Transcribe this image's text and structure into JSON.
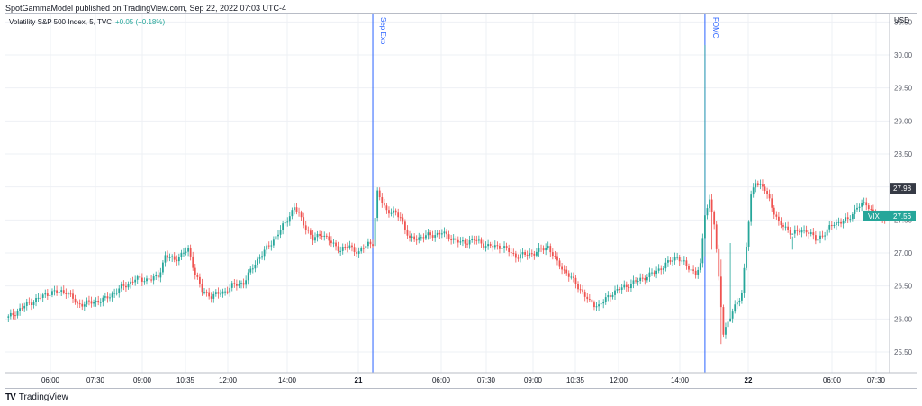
{
  "header": {
    "published": "SpotGammaModel published on TradingView.com, Sep 22, 2022 07:03 UTC-4"
  },
  "legend": {
    "symbol": "Volatility S&P 500 Index, 5, TVC",
    "change": "+0.05 (+0.18%)"
  },
  "footer": {
    "brand": "TradingView"
  },
  "colors": {
    "up": "#26a69a",
    "down": "#ef5350",
    "marker": "#2962ff",
    "text": "#131722",
    "grid": "#eef0f4"
  },
  "chart_data": {
    "type": "candlestick",
    "currency": "USD",
    "ylim": [
      25.2,
      30.6
    ],
    "y_ticks": [
      "25.50",
      "26.00",
      "26.50",
      "27.00",
      "27.50",
      "28.00",
      "28.50",
      "29.00",
      "29.50",
      "30.00",
      "30.50"
    ],
    "x_ticks": [
      "06:00",
      "07:30",
      "09:00",
      "10:35",
      "12:00",
      "14:00",
      "21",
      "06:00",
      "07:30",
      "09:00",
      "10:35",
      "12:00",
      "14:00",
      "22",
      "06:00",
      "07:30"
    ],
    "event_lines": [
      {
        "label": "Sep Exp",
        "bar": 158
      },
      {
        "label": "FOMC",
        "bar": 302
      }
    ],
    "price_labels": [
      {
        "text": "27.98",
        "value": 27.98,
        "style": "dark"
      },
      {
        "text": "27.56",
        "value": 27.56,
        "style": "teal",
        "prefix": "VIX"
      }
    ],
    "close_path": [
      [
        0,
        26.02
      ],
      [
        8,
        26.22
      ],
      [
        18,
        26.4
      ],
      [
        25,
        26.42
      ],
      [
        30,
        26.22
      ],
      [
        36,
        26.25
      ],
      [
        42,
        26.3
      ],
      [
        48,
        26.45
      ],
      [
        55,
        26.6
      ],
      [
        62,
        26.6
      ],
      [
        65,
        26.65
      ],
      [
        68,
        26.95
      ],
      [
        72,
        26.9
      ],
      [
        78,
        27.05
      ],
      [
        81,
        26.7
      ],
      [
        84,
        26.42
      ],
      [
        88,
        26.35
      ],
      [
        93,
        26.4
      ],
      [
        97,
        26.5
      ],
      [
        102,
        26.55
      ],
      [
        108,
        26.9
      ],
      [
        114,
        27.15
      ],
      [
        120,
        27.45
      ],
      [
        124,
        27.7
      ],
      [
        128,
        27.45
      ],
      [
        132,
        27.2
      ],
      [
        136,
        27.3
      ],
      [
        140,
        27.15
      ],
      [
        144,
        27.05
      ],
      [
        148,
        27.1
      ],
      [
        152,
        27.0
      ],
      [
        156,
        27.15
      ],
      [
        158,
        27.15
      ],
      [
        160,
        27.9
      ],
      [
        164,
        27.65
      ],
      [
        170,
        27.55
      ],
      [
        174,
        27.2
      ],
      [
        180,
        27.25
      ],
      [
        188,
        27.3
      ],
      [
        196,
        27.15
      ],
      [
        202,
        27.2
      ],
      [
        208,
        27.1
      ],
      [
        214,
        27.1
      ],
      [
        220,
        26.95
      ],
      [
        228,
        27.0
      ],
      [
        234,
        27.1
      ],
      [
        238,
        26.85
      ],
      [
        242,
        26.7
      ],
      [
        248,
        26.45
      ],
      [
        252,
        26.25
      ],
      [
        256,
        26.2
      ],
      [
        262,
        26.4
      ],
      [
        268,
        26.5
      ],
      [
        274,
        26.6
      ],
      [
        280,
        26.7
      ],
      [
        286,
        26.85
      ],
      [
        290,
        26.95
      ],
      [
        294,
        26.8
      ],
      [
        298,
        26.7
      ],
      [
        300,
        26.8
      ],
      [
        302,
        27.6
      ],
      [
        304,
        27.8
      ],
      [
        306,
        27.45
      ],
      [
        308,
        26.6
      ],
      [
        310,
        25.8
      ],
      [
        314,
        26.1
      ],
      [
        318,
        26.4
      ],
      [
        320,
        27.1
      ],
      [
        322,
        27.85
      ],
      [
        324,
        28.1
      ],
      [
        328,
        27.95
      ],
      [
        330,
        27.8
      ],
      [
        334,
        27.45
      ],
      [
        340,
        27.3
      ],
      [
        346,
        27.35
      ],
      [
        350,
        27.2
      ],
      [
        354,
        27.3
      ],
      [
        358,
        27.45
      ],
      [
        364,
        27.5
      ],
      [
        368,
        27.7
      ],
      [
        372,
        27.75
      ],
      [
        375,
        27.6
      ],
      [
        378,
        27.5
      ],
      [
        380,
        27.55
      ]
    ],
    "spikes": [
      {
        "bar": 302,
        "high": 30.15,
        "low": 26.95
      },
      {
        "bar": 305,
        "high": 27.9,
        "low": 27.05
      },
      {
        "bar": 309,
        "high": 26.9,
        "low": 25.62
      },
      {
        "bar": 313,
        "high": 27.15,
        "low": 26.0
      },
      {
        "bar": 340,
        "high": 27.25,
        "low": 27.05
      }
    ]
  }
}
